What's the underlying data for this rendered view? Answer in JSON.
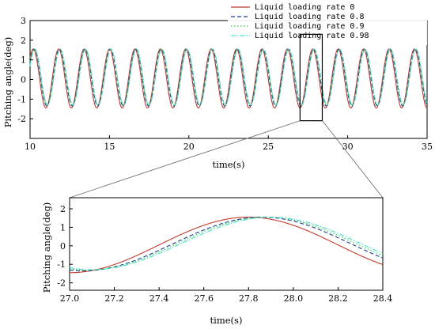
{
  "chart_data": [
    {
      "type": "line",
      "xlabel": "time(s)",
      "ylabel": "Pitching angle(deg)",
      "xlim": [
        10,
        35
      ],
      "ylim": [
        -3,
        3
      ],
      "xticks": [
        10,
        15,
        20,
        25,
        30,
        35
      ],
      "yticks": [
        -2,
        -1,
        0,
        1,
        2,
        3
      ],
      "grid": false,
      "legend_position": "top-right",
      "period_s": 1.6,
      "series": [
        {
          "name": "Liquid loading rate 0",
          "color": "#c0392b",
          "style": "solid",
          "amplitude": 1.5,
          "offset": 0.05,
          "phase_peak_time": 27.8
        },
        {
          "name": "Liquid loading rate 0.8",
          "color": "#1f3a93",
          "style": "dashed",
          "amplitude": 1.45,
          "offset": 0.1,
          "phase_peak_time": 27.86
        },
        {
          "name": "Liquid loading rate 0.9",
          "color": "#2ecc40",
          "style": "dotted",
          "amplitude": 1.43,
          "offset": 0.12,
          "phase_peak_time": 27.88
        },
        {
          "name": "Liquid loading rate 0.98",
          "color": "#40e0d0",
          "style": "dashdot",
          "amplitude": 1.42,
          "offset": 0.13,
          "phase_peak_time": 27.9
        }
      ],
      "highlight_window": {
        "x": [
          27.0,
          28.4
        ],
        "y": [
          -2.1,
          2.3
        ]
      }
    },
    {
      "type": "line",
      "xlabel": "time(s)",
      "ylabel": "Pitching angle(deg)",
      "xlim": [
        27.0,
        28.4
      ],
      "ylim": [
        -2.4,
        2.6
      ],
      "xticks": [
        27.0,
        27.2,
        27.4,
        27.6,
        27.8,
        28.0,
        28.2,
        28.4
      ],
      "yticks": [
        -2,
        -1,
        0,
        1,
        2
      ],
      "grid": false,
      "series_ref": "same as first chart"
    }
  ]
}
